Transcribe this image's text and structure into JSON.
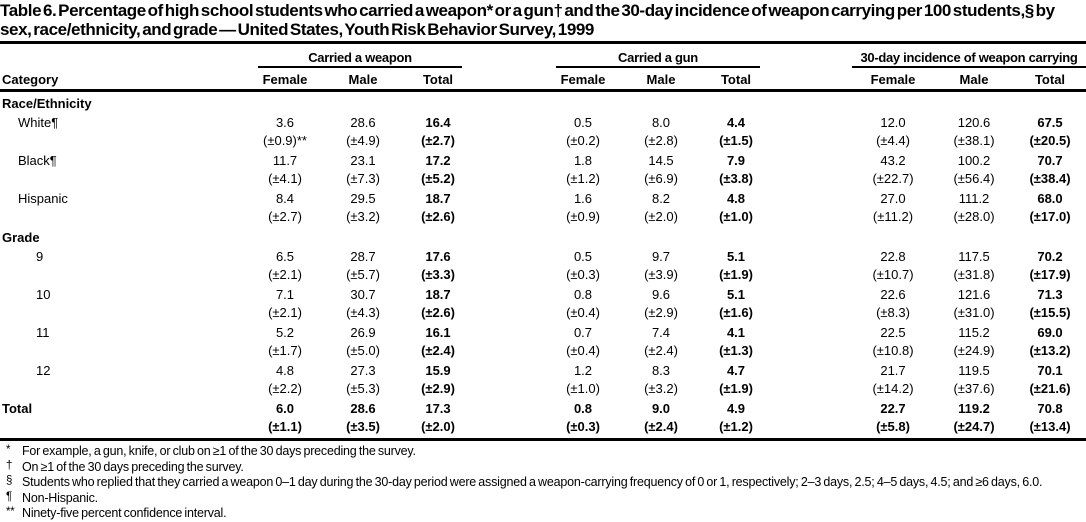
{
  "title": "Table 6. Percentage of high school students who carried a weapon* or a gun† and the 30-day incidence of weapon carrying per 100 students,§ by sex, race/ethnicity, and grade — United States, Youth Risk Behavior Survey, 1999",
  "table": {
    "category_header": "Category",
    "groups": [
      {
        "label": "Carried a weapon",
        "columns": [
          "Female",
          "Male",
          "Total"
        ]
      },
      {
        "label": "Carried a gun",
        "columns": [
          "Female",
          "Male",
          "Total"
        ]
      },
      {
        "label": "30-day incidence of weapon carrying",
        "columns": [
          "Female",
          "Male",
          "Total"
        ]
      }
    ],
    "rows": [
      {
        "type": "section",
        "label": "Race/Ethnicity"
      },
      {
        "type": "data",
        "label": "White¶",
        "indent": 1,
        "values": [
          "3.6",
          "28.6",
          "16.4",
          "0.5",
          "8.0",
          "4.4",
          "12.0",
          "120.6",
          "67.5"
        ],
        "ci": [
          "(±0.9)**",
          "(±4.9)",
          "(±2.7)",
          "(±0.2)",
          "(±2.8)",
          "(±1.5)",
          "(±4.4)",
          "(±38.1)",
          "(±20.5)"
        ]
      },
      {
        "type": "data",
        "label": "Black¶",
        "indent": 1,
        "values": [
          "11.7",
          "23.1",
          "17.2",
          "1.8",
          "14.5",
          "7.9",
          "43.2",
          "100.2",
          "70.7"
        ],
        "ci": [
          "(±4.1)",
          "(±7.3)",
          "(±5.2)",
          "(±1.2)",
          "(±6.9)",
          "(±3.8)",
          "(±22.7)",
          "(±56.4)",
          "(±38.4)"
        ]
      },
      {
        "type": "data",
        "label": "Hispanic",
        "indent": 1,
        "values": [
          "8.4",
          "29.5",
          "18.7",
          "1.6",
          "8.2",
          "4.8",
          "27.0",
          "111.2",
          "68.0"
        ],
        "ci": [
          "(±2.7)",
          "(±3.2)",
          "(±2.6)",
          "(±0.9)",
          "(±2.0)",
          "(±1.0)",
          "(±11.2)",
          "(±28.0)",
          "(±17.0)"
        ]
      },
      {
        "type": "section",
        "label": "Grade"
      },
      {
        "type": "data",
        "label": "9",
        "indent": 2,
        "values": [
          "6.5",
          "28.7",
          "17.6",
          "0.5",
          "9.7",
          "5.1",
          "22.8",
          "117.5",
          "70.2"
        ],
        "ci": [
          "(±2.1)",
          "(±5.7)",
          "(±3.3)",
          "(±0.3)",
          "(±3.9)",
          "(±1.9)",
          "(±10.7)",
          "(±31.8)",
          "(±17.9)"
        ]
      },
      {
        "type": "data",
        "label": "10",
        "indent": 2,
        "values": [
          "7.1",
          "30.7",
          "18.7",
          "0.8",
          "9.6",
          "5.1",
          "22.6",
          "121.6",
          "71.3"
        ],
        "ci": [
          "(±2.1)",
          "(±4.3)",
          "(±2.6)",
          "(±0.4)",
          "(±2.9)",
          "(±1.6)",
          "(±8.3)",
          "(±31.0)",
          "(±15.5)"
        ]
      },
      {
        "type": "data",
        "label": "11",
        "indent": 2,
        "values": [
          "5.2",
          "26.9",
          "16.1",
          "0.7",
          "7.4",
          "4.1",
          "22.5",
          "115.2",
          "69.0"
        ],
        "ci": [
          "(±1.7)",
          "(±5.0)",
          "(±2.4)",
          "(±0.4)",
          "(±2.4)",
          "(±1.3)",
          "(±10.8)",
          "(±24.9)",
          "(±13.2)"
        ]
      },
      {
        "type": "data",
        "label": "12",
        "indent": 2,
        "values": [
          "4.8",
          "27.3",
          "15.9",
          "1.2",
          "8.3",
          "4.7",
          "21.7",
          "119.5",
          "70.1"
        ],
        "ci": [
          "(±2.2)",
          "(±5.3)",
          "(±2.9)",
          "(±1.0)",
          "(±3.2)",
          "(±1.9)",
          "(±14.2)",
          "(±37.6)",
          "(±21.6)"
        ]
      },
      {
        "type": "data",
        "label": "Total",
        "indent": 0,
        "bold_row": true,
        "values": [
          "6.0",
          "28.6",
          "17.3",
          "0.8",
          "9.0",
          "4.9",
          "22.7",
          "119.2",
          "70.8"
        ],
        "ci": [
          "(±1.1)",
          "(±3.5)",
          "(±2.0)",
          "(±0.3)",
          "(±2.4)",
          "(±1.2)",
          "(±5.8)",
          "(±24.7)",
          "(±13.4)"
        ]
      }
    ]
  },
  "footnotes": [
    {
      "marker": "*",
      "text": "For example, a gun, knife, or club on ≥1 of the 30 days preceding the survey."
    },
    {
      "marker": "†",
      "text": "On ≥1 of the 30 days preceding the survey."
    },
    {
      "marker": "§",
      "text": "Students who replied that they carried a weapon 0–1 day during the 30-day period were assigned a weapon-carrying frequency of 0 or 1, respectively; 2–3 days, 2.5; 4–5 days, 4.5; and ≥6 days, 6.0."
    },
    {
      "marker": "¶",
      "text": "Non-Hispanic."
    },
    {
      "marker": "**",
      "text": "Ninety-five percent confidence interval."
    }
  ]
}
